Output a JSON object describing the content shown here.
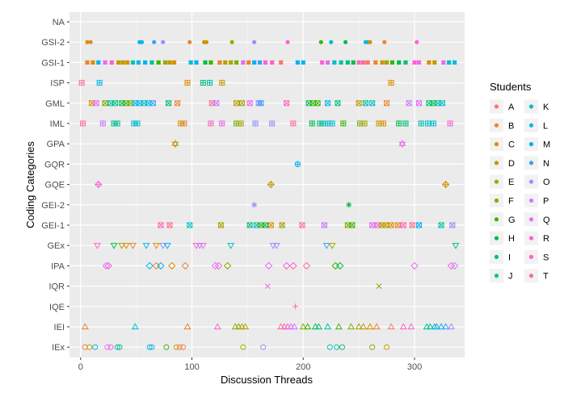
{
  "chart_data": {
    "type": "scatter",
    "title": "",
    "xlabel": "Discussion Threads",
    "ylabel": "Coding Categories",
    "xlim": [
      -10,
      345
    ],
    "xticks": [
      0,
      100,
      200,
      300
    ],
    "grid": true,
    "legend_placement": "right",
    "legend_title": "Students",
    "categories": [
      "NA",
      "GSI-2",
      "GSI-1",
      "ISP",
      "GML",
      "IML",
      "GPA",
      "GQR",
      "GQE",
      "GEI-2",
      "GEI-1",
      "GEx",
      "IPA",
      "IQR",
      "IQE",
      "IEI",
      "IEx"
    ],
    "category_shapes": {
      "NA": "none",
      "GSI-2": "dot",
      "GSI-1": "square",
      "ISP": "square-plus",
      "GML": "square-x",
      "IML": "square-grid",
      "GPA": "star-hex",
      "GQR": "circle-plus",
      "GQE": "diamond-plus",
      "GEI-2": "asterisk",
      "GEI-1": "square-x",
      "GEx": "triangle-down",
      "IPA": "diamond",
      "IQR": "x",
      "IQE": "plus",
      "IEI": "triangle",
      "IEx": "circle"
    },
    "students": [
      "A",
      "B",
      "C",
      "D",
      "E",
      "F",
      "G",
      "H",
      "I",
      "J",
      "K",
      "L",
      "M",
      "N",
      "O",
      "P",
      "Q",
      "R",
      "S",
      "T"
    ],
    "student_colors": {
      "A": "#F8766D",
      "B": "#EA8331",
      "C": "#D89000",
      "D": "#C09B00",
      "E": "#A3A500",
      "F": "#7CAE00",
      "G": "#39B600",
      "H": "#00BB4E",
      "I": "#00BF7D",
      "J": "#00C1A3",
      "K": "#00BFC4",
      "L": "#00BAE0",
      "M": "#00B0F6",
      "N": "#35A2FF",
      "O": "#9590FF",
      "P": "#C77CFF",
      "Q": "#E76BF3",
      "R": "#FA62DB",
      "S": "#FF62BC",
      "T": "#FF6C91"
    },
    "series": [
      {
        "category": "GSI-2",
        "points": [
          [
            6,
            "C"
          ],
          [
            9,
            "B"
          ],
          [
            53,
            "M"
          ],
          [
            55,
            "L"
          ],
          [
            66,
            "N"
          ],
          [
            74,
            "O"
          ],
          [
            98,
            "B"
          ],
          [
            111,
            "D"
          ],
          [
            113,
            "C"
          ],
          [
            136,
            "E"
          ],
          [
            156,
            "O"
          ],
          [
            186,
            "R"
          ],
          [
            216,
            "G"
          ],
          [
            225,
            "K"
          ],
          [
            238,
            "H"
          ],
          [
            256,
            "K"
          ],
          [
            258,
            "L"
          ],
          [
            260,
            "C"
          ],
          [
            273,
            "B"
          ],
          [
            302,
            "R"
          ]
        ]
      },
      {
        "category": "GSI-1",
        "points": [
          [
            6,
            "B"
          ],
          [
            11,
            "C"
          ],
          [
            16,
            "M"
          ],
          [
            22,
            "Q"
          ],
          [
            28,
            "S"
          ],
          [
            34,
            "D"
          ],
          [
            38,
            "D"
          ],
          [
            42,
            "C"
          ],
          [
            47,
            "K"
          ],
          [
            52,
            "L"
          ],
          [
            58,
            "M"
          ],
          [
            64,
            "J"
          ],
          [
            70,
            "G"
          ],
          [
            76,
            "E"
          ],
          [
            80,
            "D"
          ],
          [
            84,
            "C"
          ],
          [
            99,
            "L"
          ],
          [
            104,
            "M"
          ],
          [
            112,
            "H"
          ],
          [
            117,
            "G"
          ],
          [
            125,
            "B"
          ],
          [
            130,
            "D"
          ],
          [
            135,
            "E"
          ],
          [
            140,
            "F"
          ],
          [
            146,
            "Q"
          ],
          [
            151,
            "B"
          ],
          [
            156,
            "M"
          ],
          [
            161,
            "N"
          ],
          [
            166,
            "R"
          ],
          [
            172,
            "S"
          ],
          [
            180,
            "A"
          ],
          [
            195,
            "M"
          ],
          [
            200,
            "L"
          ],
          [
            217,
            "R"
          ],
          [
            222,
            "Q"
          ],
          [
            228,
            "K"
          ],
          [
            234,
            "J"
          ],
          [
            240,
            "I"
          ],
          [
            245,
            "H"
          ],
          [
            250,
            "S"
          ],
          [
            254,
            "T"
          ],
          [
            258,
            "A"
          ],
          [
            265,
            "B"
          ],
          [
            271,
            "D"
          ],
          [
            275,
            "E"
          ],
          [
            280,
            "G"
          ],
          [
            286,
            "H"
          ],
          [
            292,
            "I"
          ],
          [
            300,
            "R"
          ],
          [
            304,
            "R"
          ],
          [
            313,
            "C"
          ],
          [
            318,
            "D"
          ],
          [
            326,
            "Q"
          ],
          [
            331,
            "K"
          ],
          [
            336,
            "L"
          ]
        ]
      },
      {
        "category": "ISP",
        "points": [
          [
            1,
            "T"
          ],
          [
            17,
            "L"
          ],
          [
            96,
            "C"
          ],
          [
            110,
            "I"
          ],
          [
            116,
            "J"
          ],
          [
            127,
            "D"
          ],
          [
            279,
            "C"
          ]
        ]
      },
      {
        "category": "GML",
        "points": [
          [
            10,
            "C"
          ],
          [
            14,
            "Q"
          ],
          [
            22,
            "F"
          ],
          [
            27,
            "J"
          ],
          [
            31,
            "I"
          ],
          [
            37,
            "H"
          ],
          [
            41,
            "G"
          ],
          [
            45,
            "F"
          ],
          [
            49,
            "L"
          ],
          [
            53,
            "M"
          ],
          [
            57,
            "K"
          ],
          [
            61,
            "L"
          ],
          [
            65,
            "N"
          ],
          [
            79,
            "I"
          ],
          [
            87,
            "B"
          ],
          [
            118,
            "T"
          ],
          [
            122,
            "P"
          ],
          [
            140,
            "D"
          ],
          [
            145,
            "E"
          ],
          [
            152,
            "Q"
          ],
          [
            160,
            "O"
          ],
          [
            162,
            "N"
          ],
          [
            185,
            "S"
          ],
          [
            205,
            "H"
          ],
          [
            209,
            "G"
          ],
          [
            213,
            "G"
          ],
          [
            222,
            "L"
          ],
          [
            231,
            "I"
          ],
          [
            250,
            "D"
          ],
          [
            256,
            "J"
          ],
          [
            262,
            "K"
          ],
          [
            275,
            "B"
          ],
          [
            295,
            "P"
          ],
          [
            304,
            "Q"
          ],
          [
            313,
            "I"
          ],
          [
            317,
            "H"
          ],
          [
            321,
            "J"
          ],
          [
            325,
            "K"
          ]
        ]
      },
      {
        "category": "IML",
        "points": [
          [
            2,
            "T"
          ],
          [
            20,
            "P"
          ],
          [
            30,
            "I"
          ],
          [
            33,
            "J"
          ],
          [
            48,
            "L"
          ],
          [
            51,
            "K"
          ],
          [
            90,
            "C"
          ],
          [
            93,
            "B"
          ],
          [
            117,
            "S"
          ],
          [
            127,
            "Q"
          ],
          [
            140,
            "F"
          ],
          [
            144,
            "E"
          ],
          [
            157,
            "O"
          ],
          [
            172,
            "O"
          ],
          [
            191,
            "T"
          ],
          [
            208,
            "H"
          ],
          [
            215,
            "I"
          ],
          [
            218,
            "J"
          ],
          [
            222,
            "K"
          ],
          [
            226,
            "L"
          ],
          [
            236,
            "G"
          ],
          [
            251,
            "F"
          ],
          [
            255,
            "E"
          ],
          [
            268,
            "D"
          ],
          [
            272,
            "C"
          ],
          [
            286,
            "H"
          ],
          [
            292,
            "I"
          ],
          [
            306,
            "J"
          ],
          [
            312,
            "K"
          ],
          [
            317,
            "L"
          ],
          [
            332,
            "R"
          ]
        ]
      },
      {
        "category": "GPA",
        "points": [
          [
            85,
            "D"
          ],
          [
            289,
            "Q"
          ]
        ]
      },
      {
        "category": "GQR",
        "points": [
          [
            195,
            "M"
          ]
        ]
      },
      {
        "category": "GQE",
        "points": [
          [
            16,
            "R"
          ],
          [
            171,
            "D"
          ],
          [
            328,
            "C"
          ]
        ]
      },
      {
        "category": "GEI-2",
        "points": [
          [
            156,
            "O"
          ],
          [
            241,
            "H"
          ]
        ]
      },
      {
        "category": "GEI-1",
        "points": [
          [
            72,
            "S"
          ],
          [
            80,
            "T"
          ],
          [
            98,
            "K"
          ],
          [
            126,
            "E"
          ],
          [
            152,
            "I"
          ],
          [
            158,
            "K"
          ],
          [
            162,
            "G"
          ],
          [
            166,
            "H"
          ],
          [
            171,
            "C"
          ],
          [
            181,
            "E"
          ],
          [
            199,
            "T"
          ],
          [
            219,
            "P"
          ],
          [
            240,
            "F"
          ],
          [
            244,
            "G"
          ],
          [
            262,
            "Q"
          ],
          [
            267,
            "R"
          ],
          [
            271,
            "E"
          ],
          [
            274,
            "D"
          ],
          [
            279,
            "C"
          ],
          [
            285,
            "B"
          ],
          [
            290,
            "S"
          ],
          [
            298,
            "T"
          ],
          [
            304,
            "M"
          ],
          [
            324,
            "J"
          ],
          [
            334,
            "O"
          ]
        ]
      },
      {
        "category": "GEx",
        "points": [
          [
            15,
            "R"
          ],
          [
            30,
            "H"
          ],
          [
            37,
            "E"
          ],
          [
            41,
            "C"
          ],
          [
            47,
            "B"
          ],
          [
            59,
            "L"
          ],
          [
            68,
            "C"
          ],
          [
            74,
            "O"
          ],
          [
            78,
            "M"
          ],
          [
            104,
            "S"
          ],
          [
            107,
            "P"
          ],
          [
            110,
            "Q"
          ],
          [
            135,
            "K"
          ],
          [
            173,
            "P"
          ],
          [
            176,
            "O"
          ],
          [
            221,
            "N"
          ],
          [
            226,
            "E"
          ],
          [
            337,
            "I"
          ]
        ]
      },
      {
        "category": "IPA",
        "points": [
          [
            23,
            "Q"
          ],
          [
            25,
            "R"
          ],
          [
            62,
            "L"
          ],
          [
            68,
            "B"
          ],
          [
            72,
            "M"
          ],
          [
            82,
            "C"
          ],
          [
            94,
            "B"
          ],
          [
            121,
            "Q"
          ],
          [
            124,
            "R"
          ],
          [
            132,
            "F"
          ],
          [
            169,
            "Q"
          ],
          [
            185,
            "R"
          ],
          [
            191,
            "S"
          ],
          [
            203,
            "T"
          ],
          [
            229,
            "G"
          ],
          [
            233,
            "H"
          ],
          [
            300,
            "Q"
          ],
          [
            333,
            "R"
          ],
          [
            336,
            "P"
          ]
        ]
      },
      {
        "category": "IQR",
        "points": [
          [
            168,
            "R"
          ],
          [
            268,
            "F"
          ]
        ]
      },
      {
        "category": "IQE",
        "points": [
          [
            193,
            "T"
          ]
        ]
      },
      {
        "category": "IEI",
        "points": [
          [
            4,
            "B"
          ],
          [
            49,
            "L"
          ],
          [
            96,
            "B"
          ],
          [
            123,
            "R"
          ],
          [
            139,
            "E"
          ],
          [
            142,
            "F"
          ],
          [
            145,
            "D"
          ],
          [
            148,
            "E"
          ],
          [
            180,
            "T"
          ],
          [
            183,
            "S"
          ],
          [
            186,
            "R"
          ],
          [
            189,
            "Q"
          ],
          [
            192,
            "P"
          ],
          [
            200,
            "F"
          ],
          [
            204,
            "G"
          ],
          [
            211,
            "H"
          ],
          [
            214,
            "I"
          ],
          [
            222,
            "J"
          ],
          [
            232,
            "G"
          ],
          [
            243,
            "F"
          ],
          [
            250,
            "E"
          ],
          [
            254,
            "D"
          ],
          [
            260,
            "C"
          ],
          [
            266,
            "B"
          ],
          [
            279,
            "A"
          ],
          [
            290,
            "S"
          ],
          [
            297,
            "R"
          ],
          [
            311,
            "I"
          ],
          [
            314,
            "J"
          ],
          [
            318,
            "K"
          ],
          [
            320,
            "L"
          ],
          [
            324,
            "M"
          ],
          [
            328,
            "N"
          ],
          [
            333,
            "O"
          ]
        ]
      },
      {
        "category": "IEx",
        "points": [
          [
            4,
            "B"
          ],
          [
            8,
            "C"
          ],
          [
            13,
            "L"
          ],
          [
            24,
            "Q"
          ],
          [
            27,
            "R"
          ],
          [
            33,
            "J"
          ],
          [
            35,
            "I"
          ],
          [
            62,
            "M"
          ],
          [
            64,
            "L"
          ],
          [
            77,
            "G"
          ],
          [
            86,
            "C"
          ],
          [
            89,
            "B"
          ],
          [
            92,
            "A"
          ],
          [
            146,
            "E"
          ],
          [
            164,
            "O"
          ],
          [
            224,
            "K"
          ],
          [
            230,
            "J"
          ],
          [
            235,
            "I"
          ],
          [
            262,
            "F"
          ],
          [
            275,
            "D"
          ]
        ]
      }
    ]
  }
}
